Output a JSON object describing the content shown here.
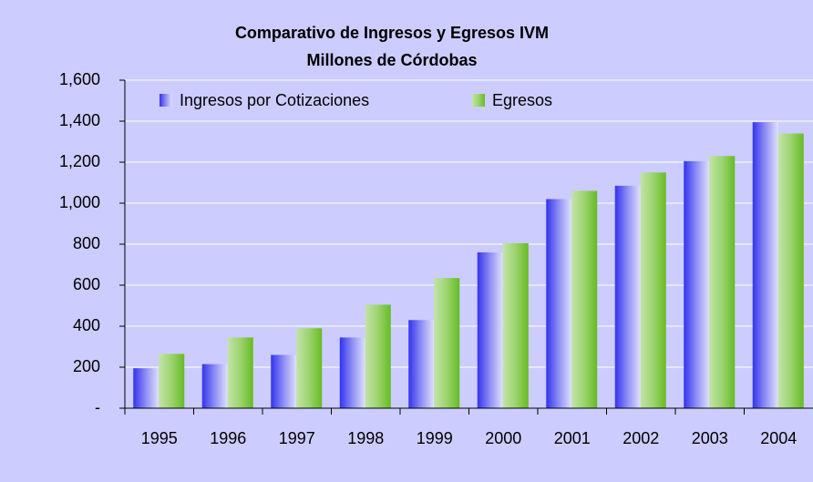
{
  "chart_data": {
    "type": "bar",
    "title": "Comparativo de Ingresos y Egresos IVM",
    "subtitle": "Millones de Córdobas",
    "categories": [
      "1995",
      "1996",
      "1997",
      "1998",
      "1999",
      "2000",
      "2001",
      "2002",
      "2003",
      "2004"
    ],
    "series": [
      {
        "name": "Ingresos por Cotizaciones",
        "color": "#3333ee",
        "values": [
          195,
          215,
          260,
          345,
          430,
          760,
          1020,
          1085,
          1205,
          1395
        ]
      },
      {
        "name": "Egresos",
        "color": "#66bb22",
        "values": [
          265,
          345,
          390,
          505,
          635,
          805,
          1060,
          1150,
          1230,
          1340
        ]
      }
    ],
    "ylim": [
      0,
      1600
    ],
    "yticks": [
      {
        "value": 0,
        "label": "-"
      },
      200,
      400,
      600,
      800,
      {
        "value": 1000,
        "label": "1,000"
      },
      {
        "value": 1200,
        "label": "1,200"
      },
      {
        "value": 1400,
        "label": "1,400"
      },
      {
        "value": 1600,
        "label": "1,600"
      }
    ],
    "grid": true,
    "legend": "top-left"
  }
}
